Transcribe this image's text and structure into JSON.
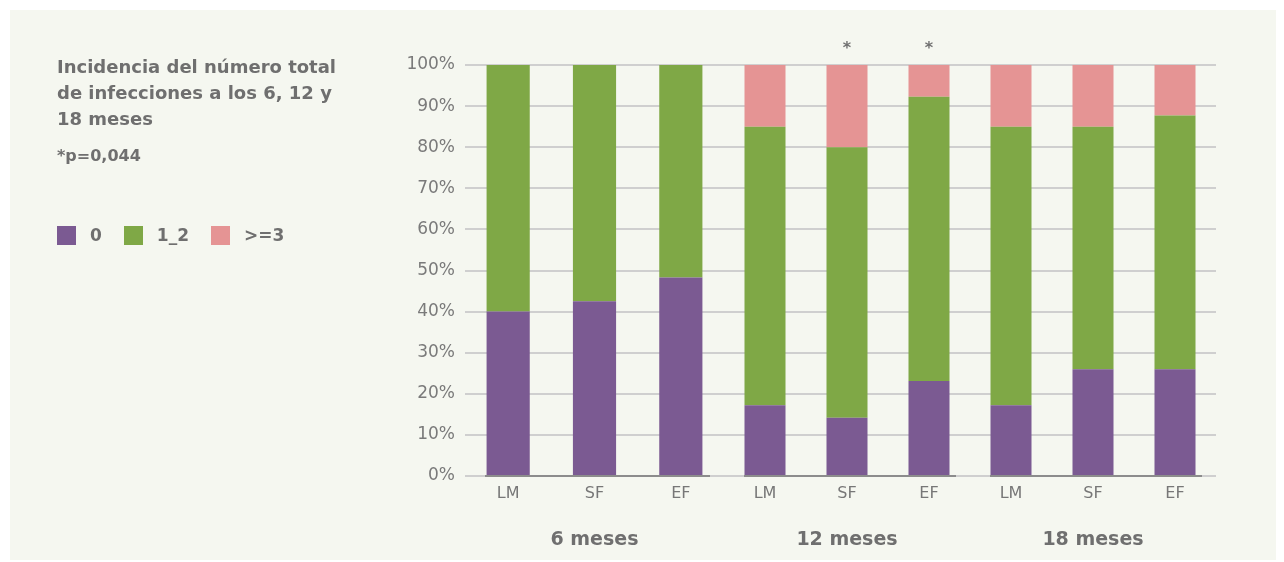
{
  "chart_data": [
    {
      "type": "bar",
      "title": "Incidencia del número total de infecciones a los 6, 12 y 18 meses",
      "annotations": [
        "*p=0,044"
      ],
      "xlabel": "6 meses",
      "categories": [
        "LM",
        "SF",
        "EF"
      ],
      "stacked": true,
      "legend": "left",
      "grid": "y",
      "ylim": [
        0,
        100
      ],
      "yticks": [
        {
          "value": 0,
          "label": "0%"
        },
        {
          "value": 10,
          "label": "10%"
        },
        {
          "value": 20,
          "label": "20%"
        },
        {
          "value": 30,
          "label": "30%"
        },
        {
          "value": 40,
          "label": "40%"
        },
        {
          "value": 50,
          "label": "50%"
        },
        {
          "value": 60,
          "label": "60%"
        },
        {
          "value": 70,
          "label": "70%"
        },
        {
          "value": 80,
          "label": "80%"
        },
        {
          "value": 90,
          "label": "90%"
        },
        {
          "value": 100,
          "label": "100%"
        }
      ],
      "series": [
        {
          "name": "0",
          "color": "#7b5a92",
          "values": [
            40,
            42.5,
            48.3
          ]
        },
        {
          "name": "1_2",
          "color": "#7fa846",
          "values": [
            60,
            57.5,
            51.7
          ]
        },
        {
          "name": ">=3",
          "color": "#e59494",
          "values": [
            0,
            0,
            0
          ]
        }
      ]
    },
    {
      "type": "bar",
      "xlabel": "12 meses",
      "categories": [
        "LM",
        "SF",
        "EF"
      ],
      "stacked": true,
      "grid": "y",
      "tick_labels": "x",
      "ylim": [
        0,
        100
      ],
      "yticks": [
        {
          "value": 0,
          "label": null
        },
        {
          "value": 10,
          "label": null
        },
        {
          "value": 20,
          "label": null
        },
        {
          "value": 30,
          "label": null
        },
        {
          "value": 40,
          "label": null
        },
        {
          "value": 50,
          "label": null
        },
        {
          "value": 60,
          "label": null
        },
        {
          "value": 70,
          "label": null
        },
        {
          "value": 80,
          "label": null
        },
        {
          "value": 90,
          "label": null
        },
        {
          "value": 100,
          "label": null
        }
      ],
      "annotations": [
        {
          "text": "*",
          "x": "SF",
          "y": 100
        },
        {
          "text": "*",
          "x": "EF",
          "y": 100
        }
      ],
      "series": [
        {
          "color": "#7b5a92",
          "values": [
            17.2,
            14.2,
            23.1
          ]
        },
        {
          "color": "#7fa846",
          "values": [
            67.8,
            65.8,
            69.2
          ]
        },
        {
          "color": "#e59494",
          "values": [
            15,
            20,
            7.7
          ]
        }
      ]
    },
    {
      "type": "bar",
      "xlabel": "18 meses",
      "categories": [
        "LM",
        "SF",
        "EF"
      ],
      "stacked": true,
      "grid": "y",
      "tick_labels": "x",
      "ylim": [
        0,
        100
      ],
      "yticks": [
        {
          "value": 0,
          "label": null
        },
        {
          "value": 10,
          "label": null
        },
        {
          "value": 20,
          "label": null
        },
        {
          "value": 30,
          "label": null
        },
        {
          "value": 40,
          "label": null
        },
        {
          "value": 50,
          "label": null
        },
        {
          "value": 60,
          "label": null
        },
        {
          "value": 70,
          "label": null
        },
        {
          "value": 80,
          "label": null
        },
        {
          "value": 90,
          "label": null
        },
        {
          "value": 100,
          "label": null
        }
      ],
      "series": [
        {
          "color": "#7b5a92",
          "values": [
            17.2,
            26,
            26
          ]
        },
        {
          "color": "#7fa846",
          "values": [
            67.8,
            59,
            61.7
          ]
        },
        {
          "color": "#e59494",
          "values": [
            15,
            15,
            12.3
          ]
        }
      ]
    }
  ]
}
